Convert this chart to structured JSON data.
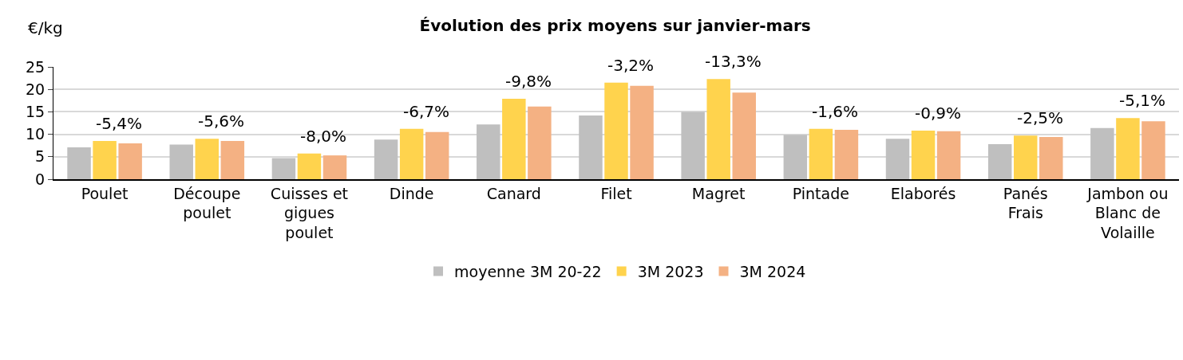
{
  "chart_data": {
    "type": "bar",
    "title": "Évolution des prix moyens sur janvier-mars",
    "ylabel": "€/kg",
    "categories": [
      "Poulet",
      "Découpe poulet",
      "Cuisses et gigues poulet",
      "Dinde",
      "Canard",
      "Filet",
      "Magret",
      "Pintade",
      "Elaborés",
      "Panés Frais",
      "Jambon ou Blanc de Volaille"
    ],
    "series": [
      {
        "name": "moyenne 3M 20-22",
        "color": "#bfbfbf",
        "values": [
          7.1,
          7.7,
          4.7,
          8.8,
          12.2,
          14.2,
          15.0,
          9.9,
          9.0,
          7.8,
          11.4
        ]
      },
      {
        "name": "3M 2023",
        "color": "#ffd34d",
        "values": [
          8.5,
          9.0,
          5.7,
          11.2,
          17.9,
          21.5,
          22.3,
          11.2,
          10.8,
          9.7,
          13.6
        ]
      },
      {
        "name": "3M 2024",
        "color": "#f4b183",
        "values": [
          8.0,
          8.5,
          5.3,
          10.5,
          16.2,
          20.8,
          19.3,
          11.0,
          10.7,
          9.4,
          12.9
        ]
      }
    ],
    "annotations": [
      "-5,4%",
      "-5,6%",
      "-8,0%",
      "-6,7%",
      "-9,8%",
      "-3,2%",
      "-13,3%",
      "-1,6%",
      "-0,9%",
      "-2,5%",
      "-5,1%"
    ],
    "ylim": [
      0,
      25
    ],
    "yticks": [
      0,
      5,
      10,
      15,
      20,
      25
    ],
    "grid": "y",
    "legend": "bottom"
  }
}
